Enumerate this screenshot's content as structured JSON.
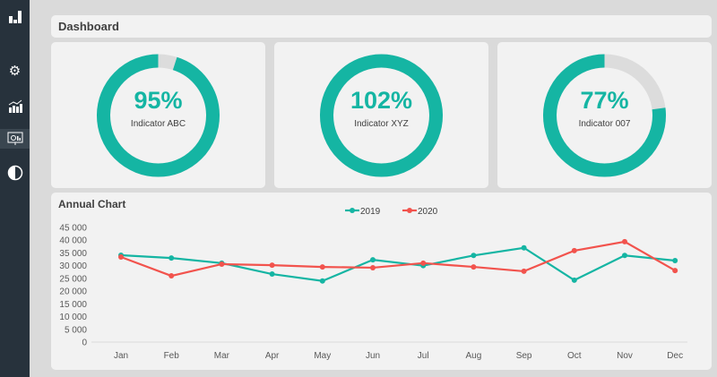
{
  "sidebar": {
    "items": [
      "logo",
      "settings",
      "charts",
      "presentation",
      "contrast"
    ]
  },
  "header": {
    "title": "Dashboard"
  },
  "kpis": [
    {
      "value": "95%",
      "label": "Indicator ABC",
      "fraction": 0.95
    },
    {
      "value": "102%",
      "label": "Indicator XYZ",
      "fraction": 1.0
    },
    {
      "value": "77%",
      "label": "Indicator 007",
      "fraction": 0.77
    }
  ],
  "colors": {
    "teal": "#15b5a3",
    "red": "#f2534d",
    "track": "#dcdcdc"
  },
  "chart_data": {
    "type": "line",
    "title": "Annual Chart",
    "categories": [
      "Jan",
      "Feb",
      "Mar",
      "Apr",
      "May",
      "Jun",
      "Jul",
      "Aug",
      "Sep",
      "Oct",
      "Nov",
      "Dec"
    ],
    "series": [
      {
        "name": "2019",
        "values": [
          34100,
          33000,
          31000,
          26700,
          24000,
          32300,
          30000,
          34000,
          37000,
          24300,
          34000,
          32000
        ]
      },
      {
        "name": "2020",
        "values": [
          33400,
          26000,
          30600,
          30200,
          29500,
          29200,
          31000,
          29500,
          27800,
          35900,
          39400,
          28100
        ]
      }
    ],
    "yticks": [
      "0",
      "5 000",
      "10 000",
      "15 000",
      "20 000",
      "25 000",
      "30 000",
      "35 000",
      "40 000",
      "45 000"
    ],
    "ylim": [
      0,
      45000
    ],
    "legend": "top-center"
  }
}
